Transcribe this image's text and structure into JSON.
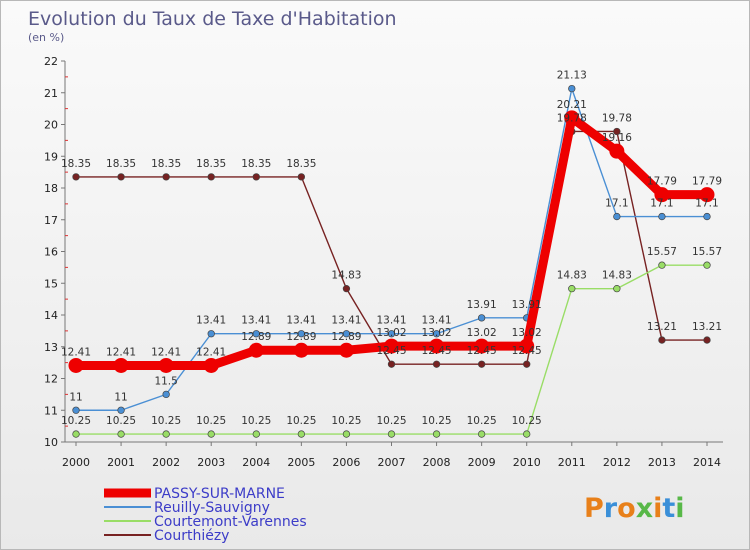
{
  "chart_data": {
    "type": "line",
    "title": "Evolution du Taux de Taxe d'Habitation",
    "subtitle": "(en %)",
    "xlabel": "",
    "ylabel": "",
    "x": [
      "2000",
      "2001",
      "2002",
      "2003",
      "2004",
      "2005",
      "2006",
      "2007",
      "2008",
      "2009",
      "2010",
      "2011",
      "2012",
      "2013",
      "2014"
    ],
    "ylim": [
      10,
      22
    ],
    "yticks": [
      10,
      11,
      12,
      13,
      14,
      15,
      16,
      17,
      18,
      19,
      20,
      21,
      22
    ],
    "grid": false,
    "legend_position": "bottom-left",
    "series": [
      {
        "name": "PASSY-SUR-MARNE",
        "color": "#ee0000",
        "values": [
          12.41,
          12.41,
          12.41,
          12.41,
          12.89,
          12.89,
          12.89,
          13.02,
          13.02,
          13.02,
          13.02,
          20.21,
          19.16,
          17.79,
          17.79
        ],
        "labels": [
          "12.41",
          "12.41",
          "12.41",
          "12.41",
          "12.89",
          "12.89",
          "12.89",
          "13.02",
          "13.02",
          "13.02",
          "13.02",
          "20.21",
          "19.16",
          "17.79",
          "17.79"
        ]
      },
      {
        "name": "Reuilly-Sauvigny",
        "color": "#4a8fd4",
        "values": [
          11,
          11,
          11.5,
          13.41,
          13.41,
          13.41,
          13.41,
          13.41,
          13.41,
          13.91,
          13.91,
          21.13,
          17.1,
          17.1,
          17.1
        ],
        "labels": [
          "11",
          "11",
          "11.5",
          "13.41",
          "13.41",
          "13.41",
          "13.41",
          "13.41",
          "13.41",
          "13.91",
          "13.91",
          "21.13",
          "17.1",
          "17.1",
          "17.1"
        ]
      },
      {
        "name": "Courtemont-Varennes",
        "color": "#99dd66",
        "values": [
          10.25,
          10.25,
          10.25,
          10.25,
          10.25,
          10.25,
          10.25,
          10.25,
          10.25,
          10.25,
          10.25,
          14.83,
          14.83,
          15.57,
          15.57
        ],
        "labels": [
          "10.25",
          "10.25",
          "10.25",
          "10.25",
          "10.25",
          "10.25",
          "10.25",
          "10.25",
          "10.25",
          "10.25",
          "10.25",
          "14.83",
          "14.83",
          "15.57",
          "15.57"
        ]
      },
      {
        "name": "Courthiézy",
        "color": "#772222",
        "values": [
          18.35,
          18.35,
          18.35,
          18.35,
          18.35,
          18.35,
          14.83,
          12.45,
          12.45,
          12.45,
          12.45,
          19.78,
          19.78,
          13.21,
          13.21
        ],
        "labels": [
          "18.35",
          "18.35",
          "18.35",
          "18.35",
          "18.35",
          "18.35",
          "14.83",
          "12.45",
          "12.45",
          "12.45",
          "12.45",
          "19.78",
          "19.78",
          "13.21",
          "13.21"
        ]
      }
    ]
  },
  "brand": {
    "text": "Proxiti",
    "colors": [
      "#e8801a",
      "#3a8fd8",
      "#e8801a",
      "#58b848",
      "#e8801a",
      "#3a8fd8",
      "#58b848"
    ]
  }
}
